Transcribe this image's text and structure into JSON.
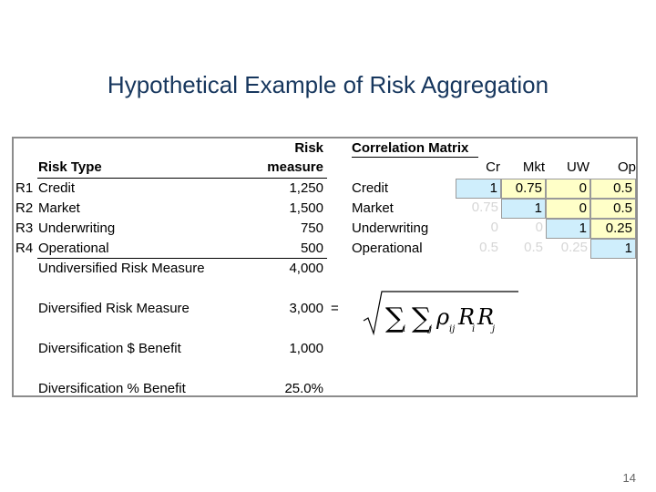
{
  "slide": {
    "title": "Hypothetical Example of Risk Aggregation",
    "page_number": "14"
  },
  "table": {
    "header_risk": "Risk",
    "header_measure": "measure",
    "header_risk_type": "Risk Type",
    "rows": [
      {
        "id": "R1",
        "type": "Credit",
        "measure": "1,250"
      },
      {
        "id": "R2",
        "type": "Market",
        "measure": "1,500"
      },
      {
        "id": "R3",
        "type": "Underwriting",
        "measure": "750"
      },
      {
        "id": "R4",
        "type": "Operational",
        "measure": "500"
      }
    ],
    "undiversified_label": "Undiversified Risk Measure",
    "undiversified_value": "4,000",
    "diversified_label": "Diversified Risk Measure",
    "diversified_value": "3,000",
    "equals": "=",
    "benefit_dollar_label": "Diversification $ Benefit",
    "benefit_dollar_value": "1,000",
    "benefit_pct_label": "Diversification % Benefit",
    "benefit_pct_value": "25.0%"
  },
  "correlation": {
    "title": "Correlation Matrix",
    "columns": [
      "Cr",
      "Mkt",
      "UW",
      "Op"
    ],
    "row_labels": [
      "Credit",
      "Market",
      "Underwriting",
      "Operational"
    ],
    "matrix": [
      [
        "1",
        "0.75",
        "0",
        "0.5"
      ],
      [
        "0.75",
        "1",
        "0",
        "0.5"
      ],
      [
        "0",
        "0",
        "1",
        "0.25"
      ],
      [
        "0.5",
        "0.5",
        "0.25",
        "1"
      ]
    ]
  },
  "colors": {
    "title": "#17375e",
    "diagonal_fill": "#cfeefc",
    "upper_fill": "#ffffc8",
    "border": "#8c8c8c"
  }
}
